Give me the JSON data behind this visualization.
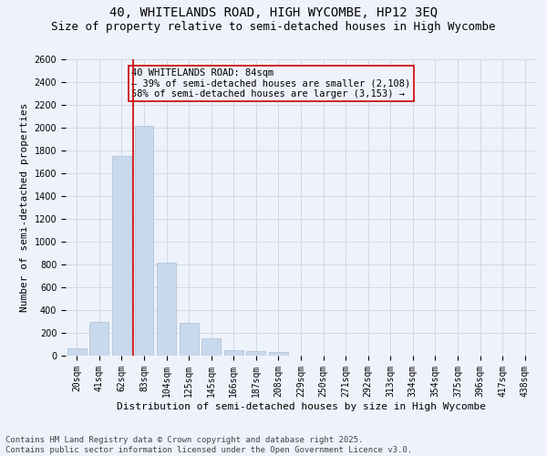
{
  "title": "40, WHITELANDS ROAD, HIGH WYCOMBE, HP12 3EQ",
  "subtitle": "Size of property relative to semi-detached houses in High Wycombe",
  "xlabel": "Distribution of semi-detached houses by size in High Wycombe",
  "ylabel": "Number of semi-detached properties",
  "categories": [
    "20sqm",
    "41sqm",
    "62sqm",
    "83sqm",
    "104sqm",
    "125sqm",
    "145sqm",
    "166sqm",
    "187sqm",
    "208sqm",
    "229sqm",
    "250sqm",
    "271sqm",
    "292sqm",
    "313sqm",
    "334sqm",
    "354sqm",
    "375sqm",
    "396sqm",
    "417sqm",
    "438sqm"
  ],
  "values": [
    62,
    300,
    1750,
    2020,
    820,
    290,
    155,
    50,
    42,
    35,
    0,
    0,
    0,
    0,
    0,
    0,
    0,
    0,
    0,
    0,
    0
  ],
  "bar_color": "#c9d9ed",
  "bar_edgecolor": "#aabfd4",
  "bar_linewidth": 0.5,
  "grid_color": "#d0d8e8",
  "background_color": "#eef2fb",
  "red_line_color": "#cc0000",
  "red_line_index": 2.5,
  "annotation_box_text": "40 WHITELANDS ROAD: 84sqm\n← 39% of semi-detached houses are smaller (2,108)\n58% of semi-detached houses are larger (3,153) →",
  "ylim": [
    0,
    2600
  ],
  "yticks": [
    0,
    200,
    400,
    600,
    800,
    1000,
    1200,
    1400,
    1600,
    1800,
    2000,
    2200,
    2400,
    2600
  ],
  "footnote": "Contains HM Land Registry data © Crown copyright and database right 2025.\nContains public sector information licensed under the Open Government Licence v3.0.",
  "title_fontsize": 10,
  "subtitle_fontsize": 9,
  "xlabel_fontsize": 8,
  "ylabel_fontsize": 8,
  "tick_fontsize": 7,
  "annotation_fontsize": 7.5,
  "footnote_fontsize": 6.5
}
